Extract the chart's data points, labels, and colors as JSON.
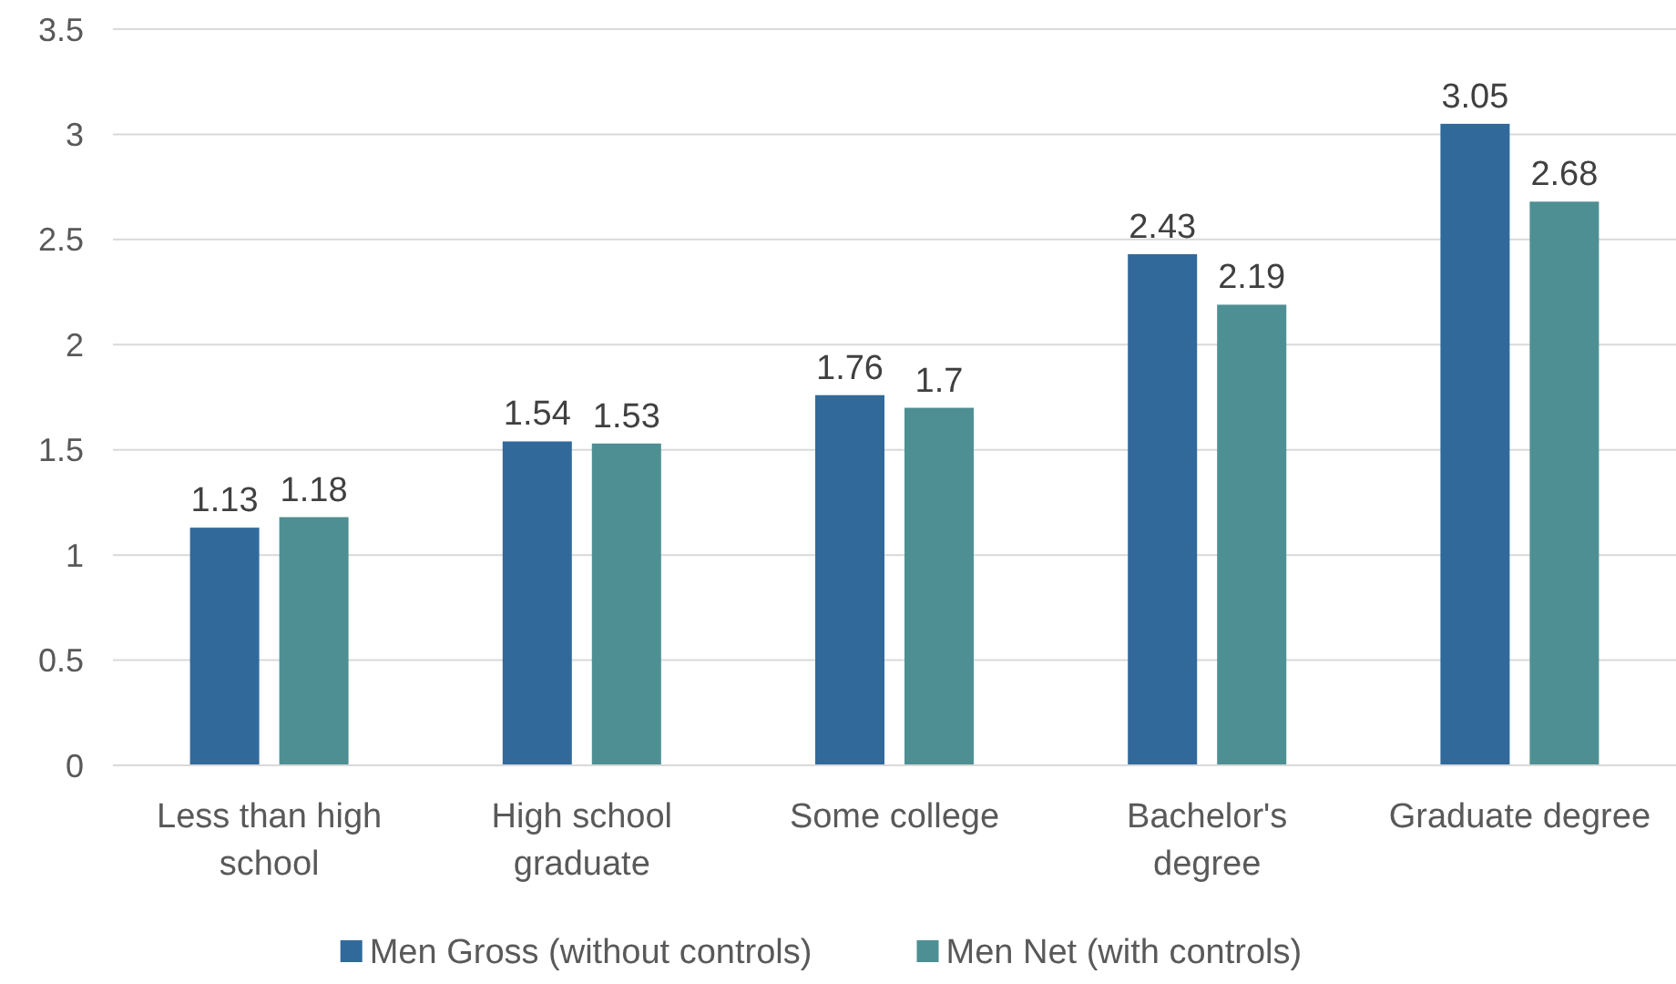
{
  "chart_data": {
    "type": "bar",
    "categories": [
      "Less than high school",
      "High school graduate",
      "Some college",
      "Bachelor's degree",
      "Graduate degree"
    ],
    "series": [
      {
        "name": "Men Gross (without controls)",
        "color": "#31699b",
        "values": [
          1.13,
          1.54,
          1.76,
          2.43,
          3.05
        ]
      },
      {
        "name": "Men Net (with controls)",
        "color": "#4e8f93",
        "values": [
          1.18,
          1.53,
          1.7,
          2.19,
          2.68
        ]
      }
    ],
    "ylim": [
      0,
      3.5
    ],
    "yticks": [
      0,
      0.5,
      1,
      1.5,
      2,
      2.5,
      3,
      3.5
    ],
    "grid": "y",
    "legend": "bottom",
    "data_labels": true
  }
}
